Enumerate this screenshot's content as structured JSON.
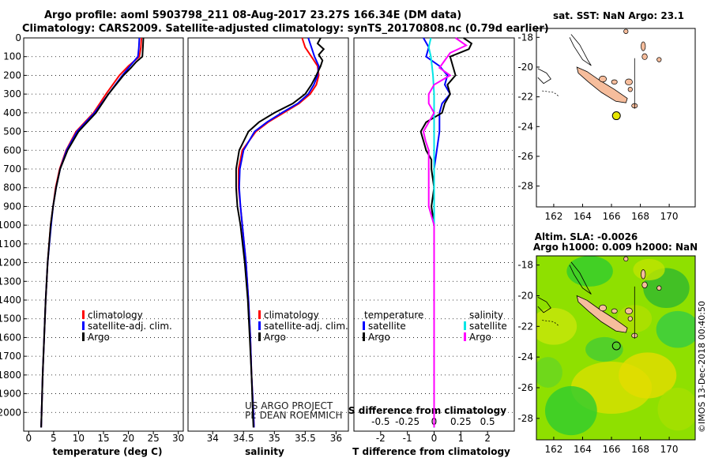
{
  "header": {
    "line1": "Argo profile: aoml 5903798_211 08-Aug-2017 23.27S 166.34E (DM data)",
    "line2": "Climatology: CARS2009. Satellite-adjusted climatology: synTS_20170808.nc (0.79d earlier)"
  },
  "credit": "©IMOS 13-Dec-2018 00:40:50",
  "colors": {
    "argo": "#000000",
    "climatology": "#ff0000",
    "satellite": "#0000ff",
    "sat_salinity": "#00e5e5",
    "argo_salinity_diff": "#ff00ff",
    "land": "#f6bd9c",
    "float_marker": "#e6e600"
  },
  "chart_data": [
    {
      "id": "temperature",
      "type": "line",
      "xlabel": "temperature (deg C)",
      "ylabel": "",
      "xlim": [
        -1,
        31
      ],
      "ylim": [
        2100,
        0
      ],
      "xticks": [
        "0",
        "5",
        "10",
        "15",
        "20",
        "25",
        "30"
      ],
      "yticks": [
        "0",
        "100",
        "200",
        "300",
        "400",
        "500",
        "600",
        "700",
        "800",
        "900",
        "1000",
        "1100",
        "1200",
        "1300",
        "1400",
        "1500",
        "1600",
        "1700",
        "1800",
        "1900",
        "2000"
      ],
      "legend": [
        "climatology",
        "satellite-adj. clim.",
        "Argo"
      ],
      "series": [
        {
          "name": "climatology",
          "color": "#ff0000",
          "depth": [
            0,
            50,
            100,
            150,
            200,
            300,
            400,
            500,
            600,
            700,
            800,
            900,
            1000,
            1200,
            1400,
            1600,
            1800,
            2000,
            2080
          ],
          "values": [
            22.6,
            22.5,
            22.2,
            20.0,
            18.2,
            15.5,
            13.0,
            9.5,
            7.5,
            6.2,
            5.4,
            4.9,
            4.4,
            3.8,
            3.4,
            3.1,
            2.8,
            2.6,
            2.5
          ]
        },
        {
          "name": "satellite-adj. clim.",
          "color": "#0000ff",
          "depth": [
            0,
            50,
            100,
            150,
            200,
            300,
            400,
            500,
            600,
            700,
            800,
            900,
            1000,
            1200,
            1400,
            1600,
            1800,
            2000,
            2080
          ],
          "values": [
            22.2,
            22.1,
            21.9,
            20.3,
            18.8,
            16.0,
            13.2,
            9.7,
            7.6,
            6.3,
            5.5,
            4.9,
            4.5,
            3.8,
            3.4,
            3.1,
            2.8,
            2.6,
            2.5
          ]
        },
        {
          "name": "Argo",
          "color": "#000000",
          "depth": [
            0,
            50,
            100,
            130,
            160,
            200,
            300,
            400,
            500,
            600,
            700,
            800,
            900,
            1000,
            1200,
            1400,
            1600,
            1800,
            2000,
            2080
          ],
          "values": [
            23.0,
            22.9,
            22.8,
            21.5,
            20.5,
            19.0,
            16.0,
            13.5,
            10.0,
            7.8,
            6.3,
            5.5,
            4.9,
            4.4,
            3.8,
            3.4,
            3.1,
            2.8,
            2.6,
            2.5
          ]
        }
      ]
    },
    {
      "id": "salinity",
      "type": "line",
      "xlabel": "salinity",
      "ylabel": "",
      "xlim": [
        33.6,
        36.2
      ],
      "ylim": [
        2100,
        0
      ],
      "xticks": [
        "34",
        "34.5",
        "35",
        "35.5",
        "36"
      ],
      "legend": [
        "climatology",
        "satellite-adj. clim.",
        "Argo"
      ],
      "annotations": [
        "US ARGO PROJECT",
        "PI: DEAN ROEMMICH"
      ],
      "series": [
        {
          "name": "climatology",
          "color": "#ff0000",
          "depth": [
            0,
            50,
            100,
            150,
            200,
            250,
            300,
            350,
            400,
            450,
            500,
            600,
            700,
            800,
            900,
            1000,
            1200,
            1400,
            1600,
            1800,
            2000,
            2080
          ],
          "values": [
            35.45,
            35.5,
            35.6,
            35.7,
            35.72,
            35.68,
            35.58,
            35.4,
            35.15,
            34.9,
            34.7,
            34.48,
            34.42,
            34.42,
            34.45,
            34.48,
            34.54,
            34.58,
            34.61,
            34.63,
            34.66,
            34.67
          ]
        },
        {
          "name": "satellite-adj. clim.",
          "color": "#0000ff",
          "depth": [
            0,
            50,
            100,
            150,
            200,
            250,
            300,
            350,
            400,
            450,
            500,
            600,
            700,
            800,
            900,
            1000,
            1200,
            1400,
            1600,
            1800,
            2000,
            2080
          ],
          "values": [
            35.55,
            35.6,
            35.65,
            35.72,
            35.7,
            35.64,
            35.55,
            35.38,
            35.12,
            34.88,
            34.68,
            34.5,
            34.44,
            34.43,
            34.45,
            34.48,
            34.54,
            34.58,
            34.61,
            34.63,
            34.66,
            34.67
          ]
        },
        {
          "name": "Argo",
          "color": "#000000",
          "depth": [
            0,
            30,
            60,
            90,
            120,
            150,
            200,
            250,
            300,
            350,
            400,
            450,
            500,
            600,
            700,
            800,
            900,
            1000,
            1200,
            1400,
            1600,
            1800,
            2000,
            2080
          ],
          "values": [
            35.75,
            35.7,
            35.8,
            35.72,
            35.78,
            35.75,
            35.68,
            35.6,
            35.5,
            35.3,
            35.0,
            34.75,
            34.58,
            34.43,
            34.38,
            34.38,
            34.4,
            34.45,
            34.52,
            34.57,
            34.6,
            34.63,
            34.65,
            34.66
          ]
        }
      ]
    },
    {
      "id": "difference",
      "type": "line",
      "xlabel": "T difference from climatology",
      "ylabel": "",
      "xlim": [
        -3,
        3
      ],
      "ylim": [
        2100,
        0
      ],
      "xticks": [
        "-2",
        "-1",
        "0",
        "1",
        "2"
      ],
      "top_axis_label": "S difference from climatology",
      "top_xticks": [
        "-0.5",
        "-0.25",
        "0",
        "0.25",
        "0.5"
      ],
      "legend_left_title": "temperature",
      "legend_right_title": "salinity",
      "legend_left": [
        "satellite",
        "Argo"
      ],
      "legend_right": [
        "satellite",
        "Argo"
      ],
      "series": [
        {
          "name": "T satellite",
          "color": "#0000ff",
          "depth": [
            0,
            50,
            100,
            150,
            200,
            250,
            300,
            350,
            400,
            450,
            500,
            600,
            700,
            800,
            900,
            1000,
            1200,
            1500,
            1800,
            2080
          ],
          "values": [
            -0.4,
            -0.2,
            -0.3,
            0.2,
            0.5,
            0.4,
            0.6,
            0.3,
            0.2,
            0.2,
            0.2,
            0.1,
            0.0,
            0.0,
            0.0,
            0.0,
            0.0,
            0.0,
            0.0,
            0.0
          ]
        },
        {
          "name": "T Argo",
          "color": "#000000",
          "depth": [
            0,
            30,
            60,
            100,
            150,
            200,
            250,
            300,
            350,
            400,
            450,
            500,
            550,
            600,
            650,
            700,
            800,
            900,
            1000,
            1200,
            1500,
            1800,
            2080
          ],
          "values": [
            1.1,
            1.4,
            1.3,
            0.6,
            0.7,
            0.8,
            0.5,
            0.6,
            0.4,
            0.3,
            -0.3,
            -0.5,
            -0.4,
            -0.3,
            -0.1,
            -0.1,
            0.0,
            -0.1,
            0.0,
            0.0,
            0.0,
            0.0,
            0.0
          ]
        },
        {
          "name": "S satellite",
          "color": "#00e5e5",
          "depth": [
            0,
            50,
            100,
            150,
            200,
            300,
            400,
            500,
            700,
            900,
            1200,
            1500,
            1800,
            2080
          ],
          "values": [
            -0.03,
            -0.05,
            -0.03,
            -0.02,
            -0.01,
            0.0,
            0.0,
            0.0,
            0.0,
            0.0,
            0.0,
            0.0,
            0.0,
            0.0
          ]
        },
        {
          "name": "S Argo",
          "color": "#ff00ff",
          "depth": [
            0,
            40,
            80,
            120,
            160,
            200,
            250,
            300,
            350,
            400,
            450,
            500,
            550,
            600,
            700,
            800,
            900,
            1000,
            1200,
            1500,
            1800,
            2080
          ],
          "values": [
            0.2,
            0.3,
            0.15,
            0.1,
            0.05,
            0.15,
            0.0,
            -0.05,
            -0.05,
            0.0,
            -0.05,
            -0.1,
            -0.08,
            -0.05,
            -0.05,
            -0.05,
            -0.05,
            0.0,
            0.0,
            0.0,
            0.0,
            0.0
          ]
        }
      ]
    },
    {
      "id": "map_sst",
      "type": "scatter",
      "title": "sat. SST: NaN Argo: 23.1",
      "xlim": [
        160.8,
        171.8
      ],
      "ylim": [
        -29.4,
        -17.4
      ],
      "xticks": [
        "162",
        "164",
        "166",
        "168",
        "170"
      ],
      "yticks": [
        "-18",
        "-20",
        "-22",
        "-24",
        "-26",
        "-28"
      ],
      "float_position": {
        "lon": 166.34,
        "lat": -23.27
      }
    },
    {
      "id": "map_sla",
      "type": "heatmap",
      "title_line1": "Altim. SLA: -0.0026",
      "title_line2": "Argo h1000: 0.009 h2000: NaN",
      "xlim": [
        160.8,
        171.8
      ],
      "ylim": [
        -29.4,
        -17.4
      ],
      "xticks": [
        "162",
        "164",
        "166",
        "168",
        "170"
      ],
      "yticks": [
        "-18",
        "-20",
        "-22",
        "-24",
        "-26",
        "-28"
      ],
      "float_position": {
        "lon": 166.34,
        "lat": -23.27
      }
    }
  ]
}
